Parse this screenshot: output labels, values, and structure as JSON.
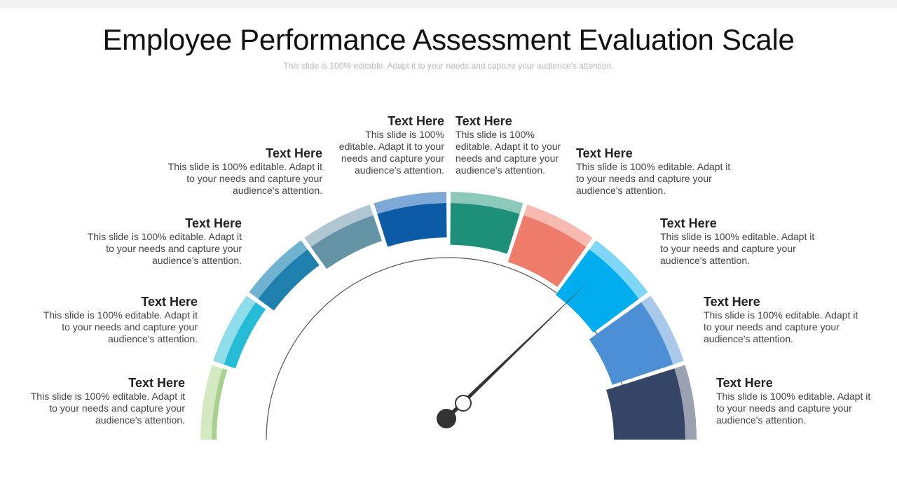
{
  "slide": {
    "title": "Employee Performance Assessment Evaluation Scale",
    "subtitle": "This slide is 100% editable. Adapt it to your needs and capture your audience's attention."
  },
  "segments": [
    {
      "fill": "#a9d18e",
      "rim": "#d4e9c2"
    },
    {
      "fill": "#26bcd7",
      "rim": "#8fdcea"
    },
    {
      "fill": "#1f7fad",
      "rim": "#6fb3d0"
    },
    {
      "fill": "#6593a6",
      "rim": "#b0c6d0"
    },
    {
      "fill": "#0d5aa7",
      "rim": "#7ea9d6"
    },
    {
      "fill": "#1e8f78",
      "rim": "#8dc9bb"
    },
    {
      "fill": "#ef7b6b",
      "rim": "#f6bab1"
    },
    {
      "fill": "#00aeef",
      "rim": "#7fd6f7"
    },
    {
      "fill": "#4c8fd4",
      "rim": "#a9c9ea"
    },
    {
      "fill": "#344566",
      "rim": "#9aa2b2"
    }
  ],
  "needle": {
    "color": "#333333",
    "pivot_color": "#333333"
  },
  "labels": [
    {
      "heading": "Text Here",
      "text": "This slide is 100% editable. Adapt it to your needs and capture your audience's attention."
    },
    {
      "heading": "Text Here",
      "text": "This slide is 100% editable. Adapt it to your needs and capture your audience's attention."
    },
    {
      "heading": "Text Here",
      "text": "This slide is 100% editable. Adapt it to your needs and capture your audience's attention."
    },
    {
      "heading": "Text Here",
      "text": "This slide is 100% editable. Adapt it to your needs and capture your audience's attention."
    },
    {
      "heading": "Text Here",
      "text": "This slide is 100% editable. Adapt it to your needs and capture your audience's attention."
    },
    {
      "heading": "Text Here",
      "text": "This slide is 100% editable. Adapt it to your needs and capture your audience's attention."
    },
    {
      "heading": "Text Here",
      "text": "This slide is 100% editable. Adapt it to your needs and capture your audience's attention."
    },
    {
      "heading": "Text Here",
      "text": "This slide is 100% editable. Adapt it to your needs and capture your audience's attention."
    },
    {
      "heading": "Text Here",
      "text": "This slide is 100% editable. Adapt it to your needs and capture your audience's attention."
    },
    {
      "heading": "Text Here",
      "text": "This slide is 100% editable. Adapt it to your needs and capture your audience's attention."
    }
  ]
}
